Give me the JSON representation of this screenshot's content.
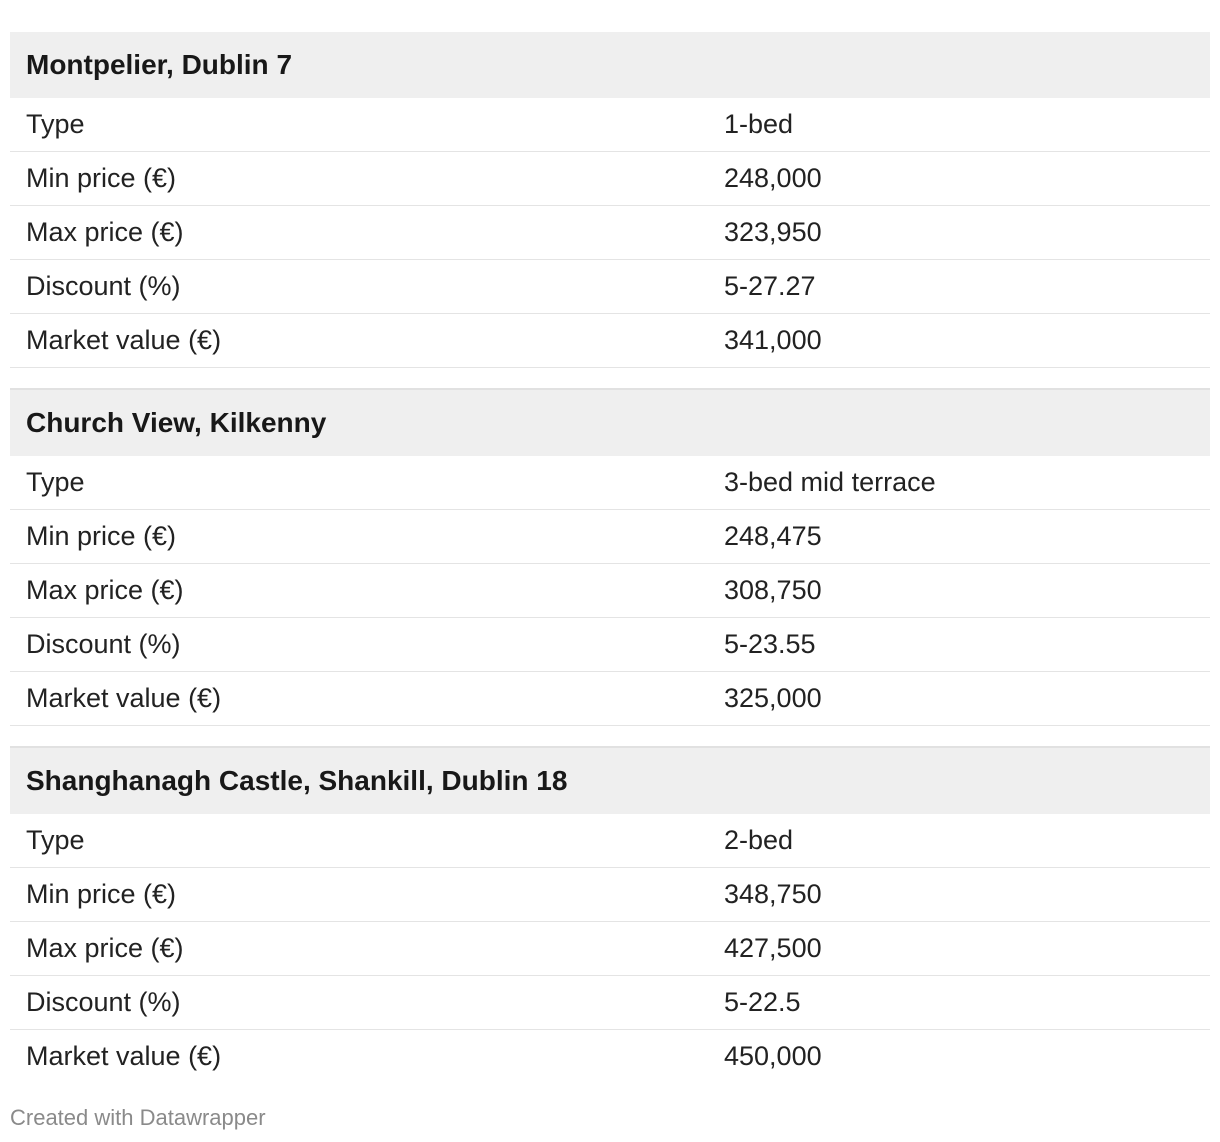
{
  "chart_data": {
    "type": "table",
    "row_labels": [
      "Type",
      "Min price (€)",
      "Max price (€)",
      "Discount (%)",
      "Market value (€)"
    ],
    "groups": [
      {
        "title": "Montpelier, Dublin 7",
        "values": [
          "1-bed",
          "248,000",
          "323,950",
          "5-27.27",
          "341,000"
        ]
      },
      {
        "title": "Church View, Kilkenny",
        "values": [
          "3-bed mid terrace",
          "248,475",
          "308,750",
          "5-23.55",
          "325,000"
        ]
      },
      {
        "title": "Shanghanagh Castle, Shankill, Dublin 18",
        "values": [
          "2-bed",
          "348,750",
          "427,500",
          "5-22.5",
          "450,000"
        ]
      }
    ]
  },
  "footer": {
    "credit": "Created with Datawrapper"
  }
}
